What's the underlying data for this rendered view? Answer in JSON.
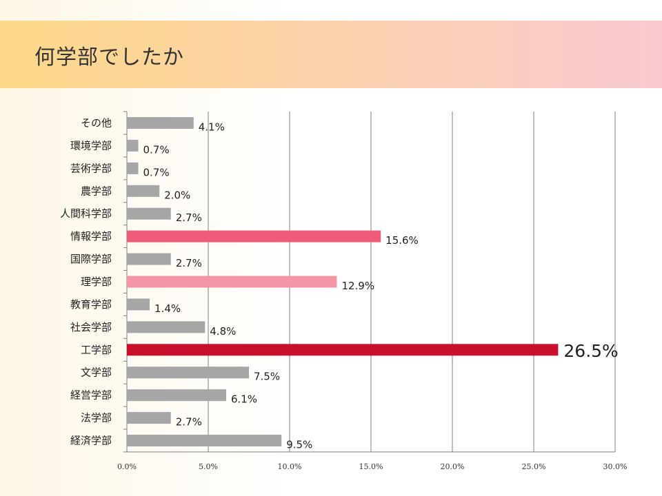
{
  "title": "何学部でしたか",
  "chart_data": {
    "type": "bar",
    "orientation": "horizontal",
    "title": "何学部でしたか",
    "xlabel": "",
    "ylabel": "",
    "xlim": [
      0,
      30
    ],
    "grid": true,
    "legend": "none",
    "x_ticks": [
      0,
      5,
      10,
      15,
      20,
      25,
      30
    ],
    "x_tick_labels": [
      "0.0%",
      "5.0%",
      "10.0%",
      "15.0%",
      "20.0%",
      "25.0%",
      "30.0%"
    ],
    "categories": [
      "その他",
      "環境学部",
      "芸術学部",
      "農学部",
      "人間科学部",
      "情報学部",
      "国際学部",
      "理学部",
      "教育学部",
      "社会学部",
      "工学部",
      "文学部",
      "経営学部",
      "法学部",
      "経済学部"
    ],
    "values": [
      4.1,
      0.7,
      0.7,
      2.0,
      2.7,
      15.6,
      2.7,
      12.9,
      1.4,
      4.8,
      26.5,
      7.5,
      6.1,
      2.7,
      9.5
    ],
    "value_labels": [
      "4.1%",
      "0.7%",
      "0.7%",
      "2.0%",
      "2.7%",
      "15.6%",
      "2.7%",
      "12.9%",
      "1.4%",
      "4.8%",
      "26.5%",
      "7.5%",
      "6.1%",
      "2.7%",
      "9.5%"
    ],
    "bar_colors": [
      "#a6a6a6",
      "#a6a6a6",
      "#a6a6a6",
      "#a6a6a6",
      "#a6a6a6",
      "#ef5b78",
      "#a6a6a6",
      "#f495a6",
      "#a6a6a6",
      "#a6a6a6",
      "#c8102e",
      "#a6a6a6",
      "#a6a6a6",
      "#a6a6a6",
      "#a6a6a6"
    ],
    "label_colors": [
      "#222222",
      "#222222",
      "#222222",
      "#222222",
      "#222222",
      "#c8102e",
      "#222222",
      "#c8102e",
      "#222222",
      "#222222",
      "#c8102e",
      "#222222",
      "#222222",
      "#222222",
      "#222222"
    ],
    "highlight_index": 10,
    "grid_color": "#7f7f7f",
    "axis_color": "#7f7f7f"
  }
}
